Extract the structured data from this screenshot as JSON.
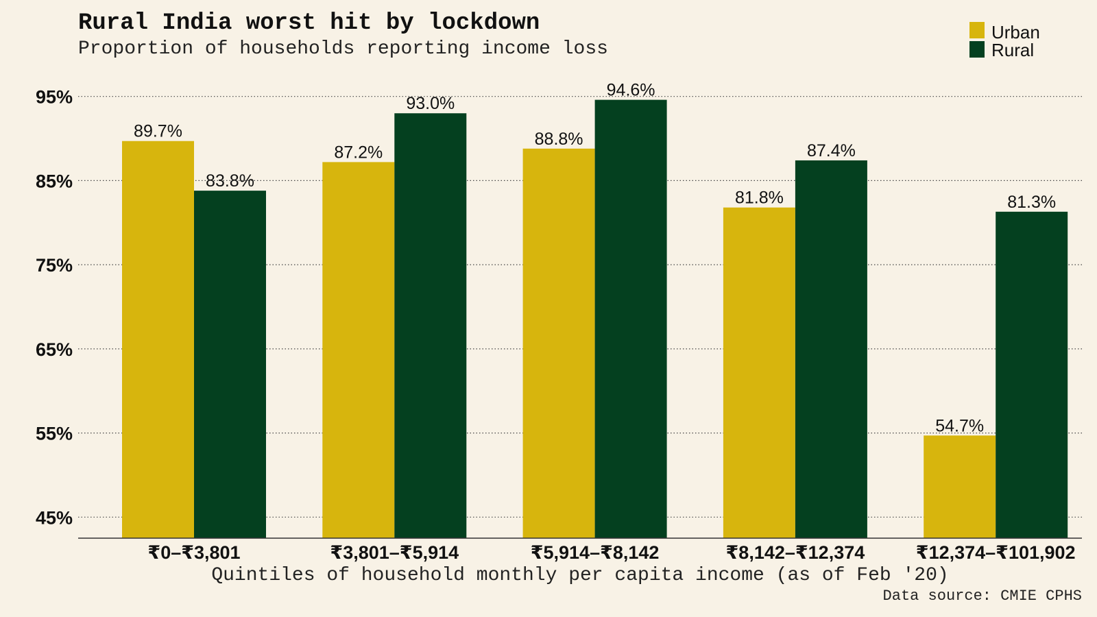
{
  "title": "Rural India worst hit by lockdown",
  "subtitle": "Proportion of households reporting income loss",
  "source": "Data source: CMIE CPHS",
  "colors": {
    "background": "#f8f2e6",
    "urban": "#d7b50d",
    "rural": "#04401f"
  },
  "legend": {
    "position": "top-right",
    "items": [
      {
        "label": "Urban",
        "color_key": "urban"
      },
      {
        "label": "Rural",
        "color_key": "rural"
      }
    ]
  },
  "chart_data": {
    "type": "bar",
    "title": "Rural India worst hit by lockdown",
    "subtitle": "Proportion of households reporting income loss",
    "xlabel": "Quintiles of household monthly per capita income (as of Feb '20)",
    "ylabel": "",
    "categories": [
      "₹0–₹3,801",
      "₹3,801–₹5,914",
      "₹5,914–₹8,142",
      "₹8,142–₹12,374",
      "₹12,374–₹101,902"
    ],
    "series": [
      {
        "name": "Urban",
        "color": "#d7b50d",
        "values": [
          89.7,
          87.2,
          88.8,
          81.8,
          54.7
        ],
        "labels": [
          "89.7%",
          "87.2%",
          "88.8%",
          "81.8%",
          "54.7%"
        ]
      },
      {
        "name": "Rural",
        "color": "#04401f",
        "values": [
          83.8,
          93.0,
          94.6,
          87.4,
          81.3
        ],
        "labels": [
          "83.8%",
          "93.0%",
          "94.6%",
          "87.4%",
          "81.3%"
        ]
      }
    ],
    "yticks": [
      45,
      55,
      65,
      75,
      85,
      95
    ],
    "ytick_labels": [
      "45%",
      "55%",
      "65%",
      "75%",
      "85%",
      "95%"
    ],
    "ylim": [
      42.5,
      97.5
    ],
    "grid": "horizontal dotted",
    "legend": "top-right"
  }
}
